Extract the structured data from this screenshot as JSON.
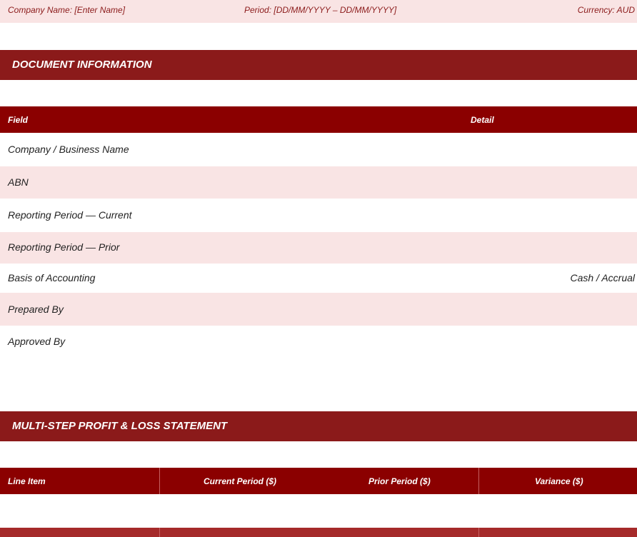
{
  "topbar": {
    "company": "Company Name:  [Enter Name]",
    "period": "Period:  [DD/MM/YYYY – DD/MM/YYYY]",
    "currency": "Currency:  AUD"
  },
  "doc_info": {
    "title": "DOCUMENT INFORMATION",
    "headers": {
      "field": "Field",
      "detail": "Detail"
    },
    "rows": [
      {
        "field": "Company / Business Name",
        "detail": ""
      },
      {
        "field": "ABN",
        "detail": ""
      },
      {
        "field": "Reporting Period — Current",
        "detail": ""
      },
      {
        "field": "Reporting Period — Prior",
        "detail": ""
      },
      {
        "field": "Basis of Accounting",
        "detail": "Cash  /  Accrual"
      },
      {
        "field": "Prepared By",
        "detail": ""
      },
      {
        "field": "Approved By",
        "detail": ""
      }
    ]
  },
  "pl": {
    "title": "MULTI-STEP PROFIT & LOSS STATEMENT",
    "headers": {
      "line_item": "Line Item",
      "current": "Current Period ($)",
      "prior": "Prior Period ($)",
      "variance": "Variance ($)"
    }
  },
  "colors": {
    "section": "#8b1a1a",
    "table_header": "#8b0000",
    "stripe": "#f9e4e4"
  }
}
